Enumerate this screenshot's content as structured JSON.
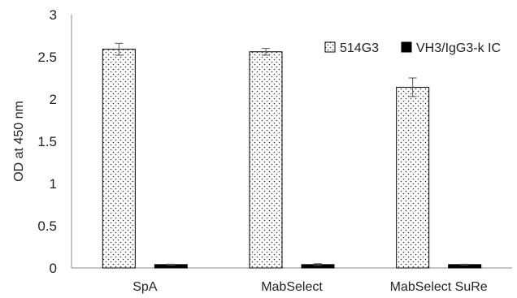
{
  "chart_data": {
    "type": "bar",
    "categories": [
      "SpA",
      "MabSelect",
      "MabSelect SuRe"
    ],
    "series": [
      {
        "name": "514G3",
        "values": [
          2.59,
          2.56,
          2.14
        ],
        "errors": [
          0.07,
          0.04,
          0.11
        ],
        "fill": "dotted",
        "color": "#ffffff"
      },
      {
        "name": "VH3/IgG3-k IC",
        "values": [
          0.04,
          0.04,
          0.04
        ],
        "errors": [
          0.005,
          0.01,
          0.005
        ],
        "fill": "solid",
        "color": "#000000"
      }
    ],
    "title": "",
    "xlabel": "",
    "ylabel": "OD at 450 nm",
    "ylim": [
      0,
      3
    ],
    "yticks": [
      "0",
      "0.5",
      "1",
      "1.5",
      "2",
      "2.5",
      "3"
    ],
    "legend_position": "top-right",
    "grid": false
  }
}
